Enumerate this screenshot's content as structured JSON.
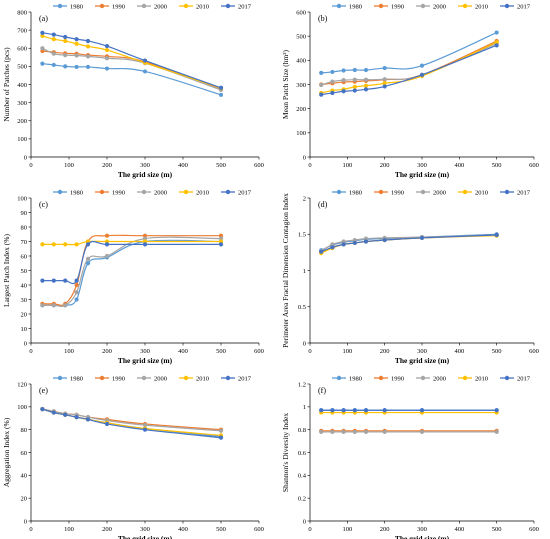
{
  "colors": {
    "1980": "#5B9BD5",
    "1990": "#ED7D31",
    "2000": "#A5A5A5",
    "2010": "#FFC000",
    "2017": "#4472C4"
  },
  "chart_data": [
    {
      "id": "a",
      "type": "line",
      "panel_label": "(a)",
      "xlabel": "The grid size (m)",
      "ylabel": "Number of Patches (pcs)",
      "xlim": [
        0,
        600
      ],
      "xticks": [
        0,
        100,
        200,
        300,
        400,
        500,
        600
      ],
      "ylim": [
        0,
        800
      ],
      "yticks": [
        0,
        100,
        200,
        300,
        400,
        500,
        600,
        700,
        800
      ],
      "ytick_labels": [
        "0",
        "100",
        "200",
        "300",
        "400",
        "500",
        "600",
        "700",
        "800"
      ],
      "legend": [
        "1980",
        "1990",
        "2000",
        "2010",
        "2017"
      ],
      "x": [
        30,
        60,
        90,
        120,
        150,
        200,
        300,
        500
      ],
      "series": [
        {
          "name": "1980",
          "values": [
            515,
            508,
            500,
            497,
            497,
            488,
            472,
            343
          ]
        },
        {
          "name": "1990",
          "values": [
            585,
            578,
            572,
            570,
            562,
            555,
            525,
            372
          ]
        },
        {
          "name": "2000",
          "values": [
            600,
            570,
            562,
            560,
            555,
            545,
            518,
            370
          ]
        },
        {
          "name": "2010",
          "values": [
            668,
            650,
            640,
            625,
            610,
            590,
            520,
            380
          ]
        },
        {
          "name": "2017",
          "values": [
            685,
            675,
            662,
            650,
            640,
            612,
            532,
            382
          ]
        }
      ]
    },
    {
      "id": "b",
      "type": "line",
      "panel_label": "(b)",
      "xlabel": "The grid size (m)",
      "ylabel": "Mean Patch Size (hm²)",
      "xlim": [
        0,
        600
      ],
      "xticks": [
        0,
        100,
        200,
        300,
        400,
        500,
        600
      ],
      "ylim": [
        0,
        600
      ],
      "yticks": [
        0,
        100,
        200,
        300,
        400,
        500,
        600
      ],
      "ytick_labels": [
        "0",
        "100",
        "200",
        "300",
        "400",
        "500",
        "600"
      ],
      "legend": [
        "1980",
        "1990",
        "2000",
        "2010",
        "2017"
      ],
      "x": [
        30,
        60,
        90,
        120,
        150,
        200,
        300,
        500
      ],
      "series": [
        {
          "name": "1980",
          "values": [
            348,
            352,
            358,
            360,
            360,
            368,
            378,
            515
          ]
        },
        {
          "name": "1990",
          "values": [
            300,
            305,
            310,
            312,
            315,
            320,
            340,
            480
          ]
        },
        {
          "name": "2000",
          "values": [
            298,
            312,
            318,
            320,
            320,
            322,
            338,
            470
          ]
        },
        {
          "name": "2010",
          "values": [
            265,
            275,
            280,
            290,
            295,
            305,
            335,
            475
          ]
        },
        {
          "name": "2017",
          "values": [
            258,
            265,
            272,
            275,
            280,
            292,
            340,
            462
          ]
        }
      ]
    },
    {
      "id": "c",
      "type": "line",
      "panel_label": "(c)",
      "xlabel": "The grid size (m)",
      "ylabel": "Largest Patch Index (%)",
      "xlim": [
        0,
        600
      ],
      "xticks": [
        0,
        100,
        200,
        300,
        400,
        500,
        600
      ],
      "ylim": [
        0,
        100
      ],
      "yticks": [
        0,
        10,
        20,
        30,
        40,
        50,
        60,
        70,
        80,
        90,
        100
      ],
      "ytick_labels": [
        "0",
        "10",
        "20",
        "30",
        "40",
        "50",
        "60",
        "70",
        "80",
        "90",
        "100"
      ],
      "legend": [
        "1980",
        "1990",
        "2000",
        "2010",
        "2017"
      ],
      "x": [
        30,
        60,
        90,
        120,
        150,
        200,
        300,
        500
      ],
      "series": [
        {
          "name": "1980",
          "values": [
            26,
            26,
            26,
            30,
            55,
            59,
            70,
            70
          ]
        },
        {
          "name": "1990",
          "values": [
            27,
            27,
            27,
            40,
            70,
            74,
            74,
            74
          ]
        },
        {
          "name": "2000",
          "values": [
            26,
            26,
            26,
            35,
            58,
            60,
            72,
            72
          ]
        },
        {
          "name": "2010",
          "values": [
            68,
            68,
            68,
            68,
            70,
            70,
            70,
            70
          ]
        },
        {
          "name": "2017",
          "values": [
            43,
            43,
            43,
            43,
            68,
            68,
            68,
            68
          ]
        }
      ]
    },
    {
      "id": "d",
      "type": "line",
      "panel_label": "(d)",
      "xlabel": "The grid size (m)",
      "ylabel": "Perimeter Area Fractal Dimension Contagion Index",
      "xlim": [
        0,
        600
      ],
      "xticks": [
        0,
        100,
        200,
        300,
        400,
        500,
        600
      ],
      "ylim": [
        0,
        2
      ],
      "yticks": [
        0,
        0.5,
        1,
        1.5,
        2
      ],
      "ytick_labels": [
        "0",
        "0.5",
        "1",
        "1.5",
        "2"
      ],
      "legend": [
        "1980",
        "1990",
        "2000",
        "2010",
        "2017"
      ],
      "x": [
        30,
        60,
        90,
        120,
        150,
        200,
        300,
        500
      ],
      "series": [
        {
          "name": "1980",
          "values": [
            1.28,
            1.35,
            1.39,
            1.41,
            1.43,
            1.44,
            1.46,
            1.5
          ]
        },
        {
          "name": "1990",
          "values": [
            1.25,
            1.32,
            1.36,
            1.38,
            1.4,
            1.42,
            1.45,
            1.49
          ]
        },
        {
          "name": "2000",
          "values": [
            1.27,
            1.36,
            1.4,
            1.42,
            1.44,
            1.45,
            1.46,
            1.49
          ]
        },
        {
          "name": "2010",
          "values": [
            1.24,
            1.31,
            1.36,
            1.38,
            1.4,
            1.42,
            1.45,
            1.48
          ]
        },
        {
          "name": "2017",
          "values": [
            1.26,
            1.32,
            1.36,
            1.38,
            1.4,
            1.42,
            1.45,
            1.49
          ]
        }
      ]
    },
    {
      "id": "e",
      "type": "line",
      "panel_label": "(e)",
      "xlabel": "The grid size (m)",
      "ylabel": "Aggregation Index (%)",
      "xlim": [
        0,
        600
      ],
      "xticks": [
        0,
        100,
        200,
        300,
        400,
        500,
        600
      ],
      "ylim": [
        0,
        120
      ],
      "yticks": [
        0,
        20,
        40,
        60,
        80,
        100,
        120
      ],
      "ytick_labels": [
        "0",
        "20",
        "40",
        "60",
        "80",
        "100",
        "120"
      ],
      "legend": [
        "1980",
        "1990",
        "2000",
        "2010",
        "2017"
      ],
      "x": [
        30,
        60,
        90,
        120,
        150,
        200,
        300,
        500
      ],
      "series": [
        {
          "name": "1980",
          "values": [
            98,
            95,
            93,
            91,
            89,
            86,
            81,
            74
          ]
        },
        {
          "name": "1990",
          "values": [
            98,
            96,
            94,
            93,
            91,
            89,
            85,
            80
          ]
        },
        {
          "name": "2000",
          "values": [
            98,
            96,
            94,
            93,
            91,
            88,
            84,
            79
          ]
        },
        {
          "name": "2010",
          "values": [
            98,
            95,
            93,
            91,
            89,
            86,
            81,
            75
          ]
        },
        {
          "name": "2017",
          "values": [
            98,
            95,
            93,
            91,
            89,
            85,
            80,
            73
          ]
        }
      ]
    },
    {
      "id": "f",
      "type": "line",
      "panel_label": "(f)",
      "xlabel": "The grid size (m)",
      "ylabel": "Shannon's Diversity Index",
      "xlim": [
        0,
        600
      ],
      "xticks": [
        0,
        100,
        200,
        300,
        400,
        500,
        600
      ],
      "ylim": [
        0,
        1.2
      ],
      "yticks": [
        0,
        0.2,
        0.4,
        0.6,
        0.8,
        1,
        1.2
      ],
      "ytick_labels": [
        "0",
        "0.2",
        "0.4",
        "0.6",
        "0.8",
        "1",
        "1.2"
      ],
      "legend": [
        "1980",
        "1990",
        "2000",
        "2010",
        "2017"
      ],
      "x": [
        30,
        60,
        90,
        120,
        150,
        200,
        300,
        500
      ],
      "series": [
        {
          "name": "1980",
          "values": [
            0.97,
            0.97,
            0.97,
            0.97,
            0.97,
            0.97,
            0.97,
            0.97
          ]
        },
        {
          "name": "1990",
          "values": [
            0.79,
            0.79,
            0.79,
            0.79,
            0.79,
            0.79,
            0.79,
            0.79
          ]
        },
        {
          "name": "2000",
          "values": [
            0.78,
            0.78,
            0.78,
            0.78,
            0.78,
            0.78,
            0.78,
            0.78
          ]
        },
        {
          "name": "2010",
          "values": [
            0.95,
            0.95,
            0.95,
            0.95,
            0.95,
            0.95,
            0.95,
            0.95
          ]
        },
        {
          "name": "2017",
          "values": [
            0.97,
            0.97,
            0.97,
            0.97,
            0.97,
            0.97,
            0.97,
            0.97
          ]
        }
      ]
    }
  ]
}
